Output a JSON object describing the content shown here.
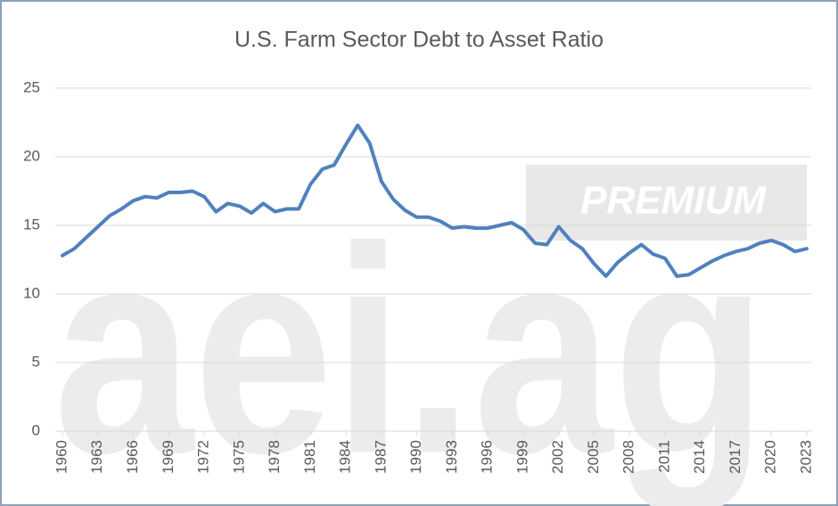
{
  "watermark": {
    "text": "aei.ag",
    "badge": "PREMIUM"
  },
  "chart_data": {
    "type": "line",
    "title": "U.S. Farm Sector Debt to Asset Ratio",
    "x": [
      1960,
      1961,
      1962,
      1963,
      1964,
      1965,
      1966,
      1967,
      1968,
      1969,
      1970,
      1971,
      1972,
      1973,
      1974,
      1975,
      1976,
      1977,
      1978,
      1979,
      1980,
      1981,
      1982,
      1983,
      1984,
      1985,
      1986,
      1987,
      1988,
      1989,
      1990,
      1991,
      1992,
      1993,
      1994,
      1995,
      1996,
      1997,
      1998,
      1999,
      2000,
      2001,
      2002,
      2003,
      2004,
      2005,
      2006,
      2007,
      2008,
      2009,
      2010,
      2011,
      2012,
      2013,
      2014,
      2015,
      2016,
      2017,
      2018,
      2019,
      2020,
      2021,
      2022,
      2023
    ],
    "values": [
      12.8,
      13.3,
      14.1,
      14.9,
      15.7,
      16.2,
      16.8,
      17.1,
      17.0,
      17.4,
      17.4,
      17.5,
      17.1,
      16.0,
      16.6,
      16.4,
      15.9,
      16.6,
      16.0,
      16.2,
      16.2,
      18.0,
      19.1,
      19.4,
      20.9,
      22.3,
      21.0,
      18.2,
      16.9,
      16.1,
      15.6,
      15.6,
      15.3,
      14.8,
      14.9,
      14.8,
      14.8,
      15.0,
      15.2,
      14.7,
      13.7,
      13.6,
      14.9,
      13.9,
      13.3,
      12.2,
      11.3,
      12.3,
      13.0,
      13.6,
      12.9,
      12.6,
      11.3,
      11.4,
      11.9,
      12.4,
      12.8,
      13.1,
      13.3,
      13.7,
      13.9,
      13.6,
      13.1,
      13.3
    ],
    "color": "#4f81bd",
    "xlim": [
      1960,
      2023
    ],
    "xticks": [
      1960,
      1963,
      1966,
      1969,
      1972,
      1975,
      1978,
      1981,
      1984,
      1987,
      1990,
      1993,
      1996,
      1999,
      2002,
      2005,
      2008,
      2011,
      2014,
      2017,
      2020,
      2023
    ],
    "ylim": [
      0,
      25
    ],
    "yticks": [
      0,
      5,
      10,
      15,
      20,
      25
    ],
    "grid": true
  }
}
